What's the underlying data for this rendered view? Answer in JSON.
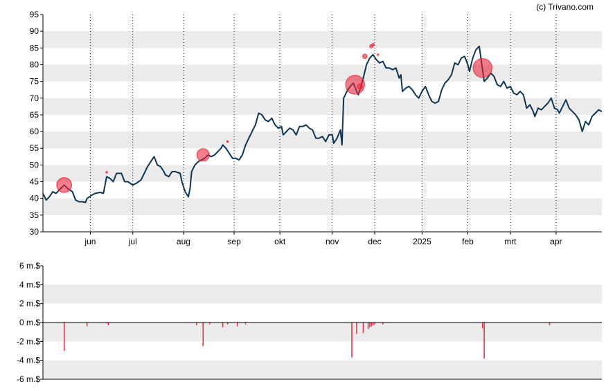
{
  "attribution": "(c) Trivano.com",
  "colors": {
    "price_line": "#0d3551",
    "band": "#ebebeb",
    "axis": "#000000",
    "insider_marker": "#e8283c",
    "insider_bar": "#e8283c",
    "vgrid": "#000000"
  },
  "chart_data": [
    {
      "type": "line",
      "title": "",
      "ylim": [
        30,
        95
      ],
      "y_ticks": [
        30,
        35,
        40,
        45,
        50,
        55,
        60,
        65,
        70,
        75,
        80,
        85,
        90,
        95
      ],
      "x_range_days": [
        0,
        342
      ],
      "x_tick_labels": [
        {
          "label": "jun",
          "day": 29
        },
        {
          "label": "jul",
          "day": 55
        },
        {
          "label": "aug",
          "day": 86
        },
        {
          "label": "sep",
          "day": 117
        },
        {
          "label": "okt",
          "day": 145
        },
        {
          "label": "nov",
          "day": 177
        },
        {
          "label": "dec",
          "day": 203
        },
        {
          "label": "2025",
          "day": 232
        },
        {
          "label": "feb",
          "day": 260
        },
        {
          "label": "mrt",
          "day": 286
        },
        {
          "label": "apr",
          "day": 314
        }
      ],
      "grid": "horizontal bands + dotted monthly verticals",
      "series": [
        {
          "points": [
            [
              0,
              41.5
            ],
            [
              2,
              39.5
            ],
            [
              4,
              40.5
            ],
            [
              6,
              42
            ],
            [
              8,
              41.5
            ],
            [
              10,
              42.5
            ],
            [
              12,
              43.5
            ],
            [
              13,
              44
            ],
            [
              15,
              43
            ],
            [
              18,
              42
            ],
            [
              20,
              39.5
            ],
            [
              22,
              39
            ],
            [
              24,
              39
            ],
            [
              26,
              38.8
            ],
            [
              27,
              40
            ],
            [
              30,
              41
            ],
            [
              32,
              41.5
            ],
            [
              35,
              41.8
            ],
            [
              37,
              41.5
            ],
            [
              38,
              44
            ],
            [
              39,
              46.5
            ],
            [
              41,
              46
            ],
            [
              43,
              45
            ],
            [
              45,
              47.5
            ],
            [
              48,
              47.5
            ],
            [
              50,
              45
            ],
            [
              52,
              45
            ],
            [
              55,
              44
            ],
            [
              57,
              44.5
            ],
            [
              60,
              45.5
            ],
            [
              62,
              47.5
            ],
            [
              64,
              49.5
            ],
            [
              66,
              51
            ],
            [
              68,
              52.5
            ],
            [
              70,
              50
            ],
            [
              72,
              49.5
            ],
            [
              74,
              48
            ],
            [
              75,
              47
            ],
            [
              77,
              46.5
            ],
            [
              79,
              48
            ],
            [
              81,
              48
            ],
            [
              84,
              47.5
            ],
            [
              85,
              45
            ],
            [
              87,
              42
            ],
            [
              89,
              40.5
            ],
            [
              90,
              43
            ],
            [
              91,
              48
            ],
            [
              93,
              50
            ],
            [
              95,
              51
            ],
            [
              97,
              51.5
            ],
            [
              99,
              52
            ],
            [
              101,
              53
            ],
            [
              103,
              52.5
            ],
            [
              105,
              53
            ],
            [
              107,
              54
            ],
            [
              109,
              55
            ],
            [
              110,
              56
            ],
            [
              112,
              55
            ],
            [
              114,
              53.5
            ],
            [
              116,
              52
            ],
            [
              118,
              52
            ],
            [
              120,
              51.5
            ],
            [
              122,
              53
            ],
            [
              124,
              56
            ],
            [
              126,
              58
            ],
            [
              128,
              60
            ],
            [
              130,
              62
            ],
            [
              132,
              65.5
            ],
            [
              134,
              65
            ],
            [
              136,
              63.5
            ],
            [
              138,
              63
            ],
            [
              140,
              64
            ],
            [
              142,
              62
            ],
            [
              144,
              61
            ],
            [
              146,
              61.5
            ],
            [
              147,
              59
            ],
            [
              149,
              60
            ],
            [
              151,
              61
            ],
            [
              153,
              60.5
            ],
            [
              155,
              59
            ],
            [
              157,
              61.5
            ],
            [
              159,
              61.5
            ],
            [
              161,
              62
            ],
            [
              163,
              61
            ],
            [
              165,
              60.5
            ],
            [
              167,
              58
            ],
            [
              169,
              58
            ],
            [
              171,
              58.5
            ],
            [
              173,
              57
            ],
            [
              175,
              59
            ],
            [
              177,
              59
            ],
            [
              178,
              56.5
            ],
            [
              180,
              58
            ],
            [
              182,
              60.5
            ],
            [
              183,
              56
            ],
            [
              184,
              70
            ],
            [
              186,
              72
            ],
            [
              188,
              73.5
            ],
            [
              190,
              74.5
            ],
            [
              192,
              72
            ],
            [
              193,
              71
            ],
            [
              195,
              74
            ],
            [
              196,
              76
            ],
            [
              198,
              80
            ],
            [
              200,
              82
            ],
            [
              202,
              83
            ],
            [
              204,
              81.5
            ],
            [
              206,
              80.5
            ],
            [
              208,
              81
            ],
            [
              210,
              79
            ],
            [
              212,
              79
            ],
            [
              214,
              78.5
            ],
            [
              216,
              79
            ],
            [
              218,
              76
            ],
            [
              219,
              77
            ],
            [
              220,
              72
            ],
            [
              222,
              73
            ],
            [
              224,
              73.5
            ],
            [
              226,
              72.5
            ],
            [
              228,
              71
            ],
            [
              230,
              70
            ],
            [
              232,
              72
            ],
            [
              234,
              73.5
            ],
            [
              236,
              71
            ],
            [
              238,
              69
            ],
            [
              240,
              68.5
            ],
            [
              242,
              69
            ],
            [
              244,
              72.5
            ],
            [
              246,
              74.5
            ],
            [
              248,
              75.5
            ],
            [
              250,
              77
            ],
            [
              252,
              80.5
            ],
            [
              254,
              80
            ],
            [
              256,
              82
            ],
            [
              258,
              82.5
            ],
            [
              260,
              80
            ],
            [
              261,
              78
            ],
            [
              263,
              82
            ],
            [
              265,
              84.5
            ],
            [
              267,
              85.5
            ],
            [
              268,
              82
            ],
            [
              270,
              75
            ],
            [
              272,
              76
            ],
            [
              274,
              77.5
            ],
            [
              276,
              76.5
            ],
            [
              278,
              74
            ],
            [
              280,
              73.5
            ],
            [
              282,
              75
            ],
            [
              284,
              73
            ],
            [
              286,
              73.5
            ],
            [
              288,
              71.5
            ],
            [
              290,
              71
            ],
            [
              292,
              72
            ],
            [
              294,
              71
            ],
            [
              296,
              67
            ],
            [
              298,
              68
            ],
            [
              300,
              66
            ],
            [
              301,
              64.5
            ],
            [
              303,
              67
            ],
            [
              305,
              66.5
            ],
            [
              307,
              67.5
            ],
            [
              309,
              68.5
            ],
            [
              311,
              70
            ],
            [
              313,
              67
            ],
            [
              315,
              66.5
            ],
            [
              316,
              65.5
            ],
            [
              318,
              67.5
            ],
            [
              320,
              69.5
            ],
            [
              322,
              67
            ],
            [
              324,
              66
            ],
            [
              326,
              65
            ],
            [
              328,
              63.5
            ],
            [
              330,
              60
            ],
            [
              332,
              63
            ],
            [
              334,
              62
            ],
            [
              336,
              64.5
            ],
            [
              338,
              65.5
            ],
            [
              340,
              66.5
            ],
            [
              342,
              66
            ]
          ]
        }
      ],
      "markers": [
        {
          "day": 13,
          "value": 44,
          "size": 3.0
        },
        {
          "day": 98,
          "value": 53,
          "size": 2.5
        },
        {
          "day": 191,
          "value": 74,
          "size": 3.8
        },
        {
          "day": 194,
          "value": 73.5,
          "size": 1.1
        },
        {
          "day": 197,
          "value": 82.5,
          "size": 0.9
        },
        {
          "day": 201,
          "value": 85.5,
          "size": 0.7
        },
        {
          "day": 202,
          "value": 86,
          "size": 0.5
        },
        {
          "day": 269,
          "value": 79,
          "size": 3.8
        },
        {
          "day": 39,
          "value": 47.8,
          "size": 0.3
        },
        {
          "day": 113,
          "value": 57,
          "size": 0.3
        },
        {
          "day": 205,
          "value": 83,
          "size": 0.3
        }
      ]
    },
    {
      "type": "bar",
      "title": "",
      "ylim": [
        -6,
        6
      ],
      "y_ticks": [
        -6,
        -4,
        -2,
        0,
        2,
        4,
        6
      ],
      "y_tick_labels": [
        "-6 m.$",
        "-4 m.$",
        "-2 m.$",
        "0 m.$",
        "2 m.$",
        "4 m.$",
        "6 m.$"
      ],
      "grid": "horizontal bands",
      "bars": [
        {
          "day": 13,
          "value": -3.0
        },
        {
          "day": 27,
          "value": -0.4
        },
        {
          "day": 39,
          "value": -0.1
        },
        {
          "day": 40,
          "value": -0.3
        },
        {
          "day": 94,
          "value": -0.3
        },
        {
          "day": 98,
          "value": -2.5
        },
        {
          "day": 102,
          "value": -0.2
        },
        {
          "day": 110,
          "value": -0.5
        },
        {
          "day": 113,
          "value": -0.2
        },
        {
          "day": 119,
          "value": -0.4
        },
        {
          "day": 124,
          "value": -0.2
        },
        {
          "day": 189,
          "value": -3.7
        },
        {
          "day": 192,
          "value": -1.2
        },
        {
          "day": 196,
          "value": -1.1
        },
        {
          "day": 199,
          "value": -0.7
        },
        {
          "day": 200,
          "value": -0.5
        },
        {
          "day": 201,
          "value": -0.4
        },
        {
          "day": 202,
          "value": -0.3
        },
        {
          "day": 203,
          "value": -0.2
        },
        {
          "day": 208,
          "value": -0.2
        },
        {
          "day": 269,
          "value": -0.6
        },
        {
          "day": 270,
          "value": -3.8
        },
        {
          "day": 310,
          "value": -0.3
        }
      ]
    }
  ]
}
